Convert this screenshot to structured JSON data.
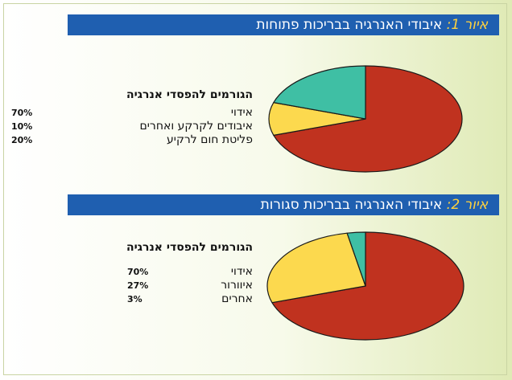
{
  "chart_data": [
    {
      "type": "pie",
      "title_label": "איור 1:",
      "title": "איבודי האנרגיה בבריכות פתוחות",
      "legend_title": "הגורמים להפסדי אנרגיה",
      "slices": [
        {
          "label": "אידוי",
          "value": 70,
          "display": "70%",
          "color": "#c0321f"
        },
        {
          "label": "איבודים לקרקע ואחרים",
          "value": 10,
          "display": "10%",
          "color": "#fcd94e"
        },
        {
          "label": "פליטת חום לרקיע",
          "value": 20,
          "display": "20%",
          "color": "#3fbfa4"
        }
      ]
    },
    {
      "type": "pie",
      "title_label": "איור 2:",
      "title": "איבודי האנרגיה בבריכות סגורות",
      "legend_title": "הגורמים להפסדי אנרגיה",
      "slices": [
        {
          "label": "אידוי",
          "value": 70,
          "display": "70%",
          "color": "#c0321f"
        },
        {
          "label": "איוורור",
          "value": 27,
          "display": "27%",
          "color": "#fcd94e"
        },
        {
          "label": "אחרים",
          "value": 3,
          "display": "3%",
          "color": "#3fbfa4"
        }
      ]
    }
  ]
}
